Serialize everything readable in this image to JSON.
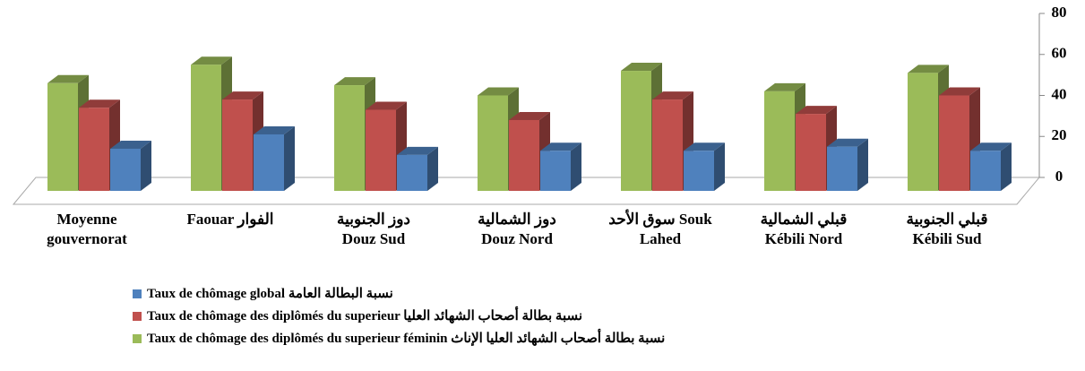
{
  "chart_data": {
    "type": "bar3d",
    "categories": [
      "Moyenne\ngouvernorat",
      "Faouar الفوار",
      "دوز الجنوبية\nDouz Sud",
      "دوز الشمالية\nDouz Nord",
      "سوق الأحد  Souk\nLahed",
      "قبلي الشمالية\nKébili Nord",
      "قبلي الجنوبية\nKébili Sud"
    ],
    "series": [
      {
        "name": "Taux de chômage des diplômés du superieur féminin نسبة بطالة أصحاب الشهائد العليا الإناث",
        "color": "#9bbb59",
        "values": [
          46,
          55,
          45,
          40,
          52,
          42,
          51
        ]
      },
      {
        "name": "Taux de chômage des diplômés du superieur نسبة بطالة أصحاب الشهائد العليا",
        "color": "#c0504d",
        "values": [
          34,
          38,
          33,
          28,
          38,
          31,
          40
        ]
      },
      {
        "name": "Taux de chômage global نسبة البطالة العامة",
        "color": "#4f81bd",
        "values": [
          14,
          21,
          11,
          13,
          13,
          15,
          13
        ]
      }
    ],
    "ylim": [
      0,
      80
    ],
    "yticks": [
      0,
      20,
      40,
      60,
      80
    ],
    "grid": false
  }
}
